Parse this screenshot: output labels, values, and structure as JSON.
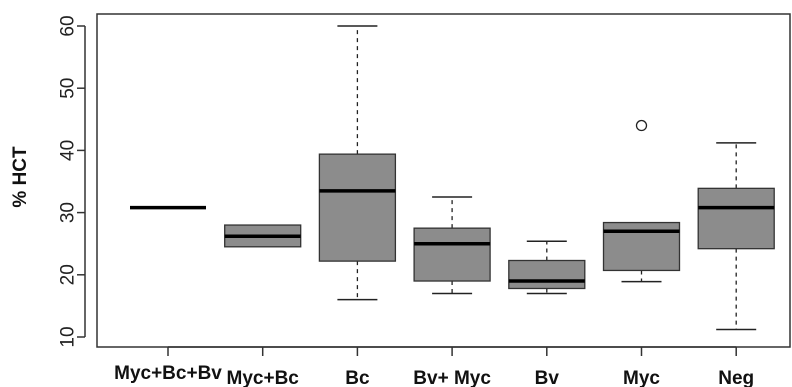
{
  "chart_data": {
    "type": "boxplot",
    "title": "",
    "xlabel": "",
    "ylabel": "% HCT",
    "ylim": [
      10,
      60
    ],
    "yticks": [
      "10",
      "20",
      "30",
      "40",
      "50",
      "60"
    ],
    "grid": false,
    "categories": [
      "Myc+Bc+Bv",
      "Myc+Bc",
      "Bc",
      "Bv+ Myc",
      "Bv",
      "Myc",
      "Neg"
    ],
    "boxes": [
      {
        "category": "Myc+Bc+Bv",
        "min": 30.8,
        "q1": 30.8,
        "median": 30.8,
        "q3": 30.8,
        "max": 30.8,
        "outliers": []
      },
      {
        "category": "Myc+Bc",
        "min": 24.5,
        "q1": 24.5,
        "median": 26.2,
        "q3": 28.0,
        "max": 28.0,
        "outliers": []
      },
      {
        "category": "Bc",
        "min": 16.0,
        "q1": 22.2,
        "median": 33.5,
        "q3": 39.4,
        "max": 60.0,
        "outliers": []
      },
      {
        "category": "Bv+ Myc",
        "min": 17.0,
        "q1": 19.0,
        "median": 25.0,
        "q3": 27.5,
        "max": 32.5,
        "outliers": []
      },
      {
        "category": "Bv",
        "min": 17.0,
        "q1": 17.8,
        "median": 19.0,
        "q3": 22.3,
        "max": 25.4,
        "outliers": []
      },
      {
        "category": "Myc",
        "min": 18.9,
        "q1": 20.7,
        "median": 27.0,
        "q3": 28.4,
        "max": 28.4,
        "outliers": [
          44.0
        ]
      },
      {
        "category": "Neg",
        "min": 11.2,
        "q1": 24.2,
        "median": 30.8,
        "q3": 33.9,
        "max": 41.2,
        "outliers": []
      }
    ],
    "colors": {
      "box_fill": "#8c8c8c",
      "median": "#000000",
      "axis": "#333333"
    }
  }
}
